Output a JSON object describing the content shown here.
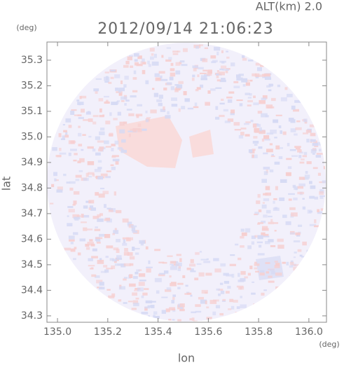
{
  "chart_data": {
    "type": "map",
    "title": "2012/09/14 21:06:23",
    "annotation": "ALT(km) 2.0",
    "x_label": "lon",
    "y_label": "lat",
    "x_unit": "(deg)",
    "y_unit": "(deg)",
    "xlim": [
      134.958,
      136.07
    ],
    "ylim": [
      34.275,
      35.371
    ],
    "xticks": [
      {
        "value": 135,
        "label": "135.0"
      },
      {
        "value": 135.2,
        "label": "135.2"
      },
      {
        "value": 135.4,
        "label": "135.4"
      },
      {
        "value": 135.6,
        "label": "135.6"
      },
      {
        "value": 135.8,
        "label": "135.8"
      },
      {
        "value": 136,
        "label": "136.0"
      }
    ],
    "yticks": [
      {
        "value": 34.3,
        "label": "34.3"
      },
      {
        "value": 34.4,
        "label": "34.4"
      },
      {
        "value": 34.5,
        "label": "34.5"
      },
      {
        "value": 34.6,
        "label": "34.6"
      },
      {
        "value": 34.7,
        "label": "34.7"
      },
      {
        "value": 34.8,
        "label": "34.8"
      },
      {
        "value": 34.9,
        "label": "34.9"
      },
      {
        "value": 35,
        "label": "35.0"
      },
      {
        "value": 35.1,
        "label": "35.1"
      },
      {
        "value": 35.2,
        "label": "35.2"
      },
      {
        "value": 35.3,
        "label": "35.3"
      }
    ]
  }
}
